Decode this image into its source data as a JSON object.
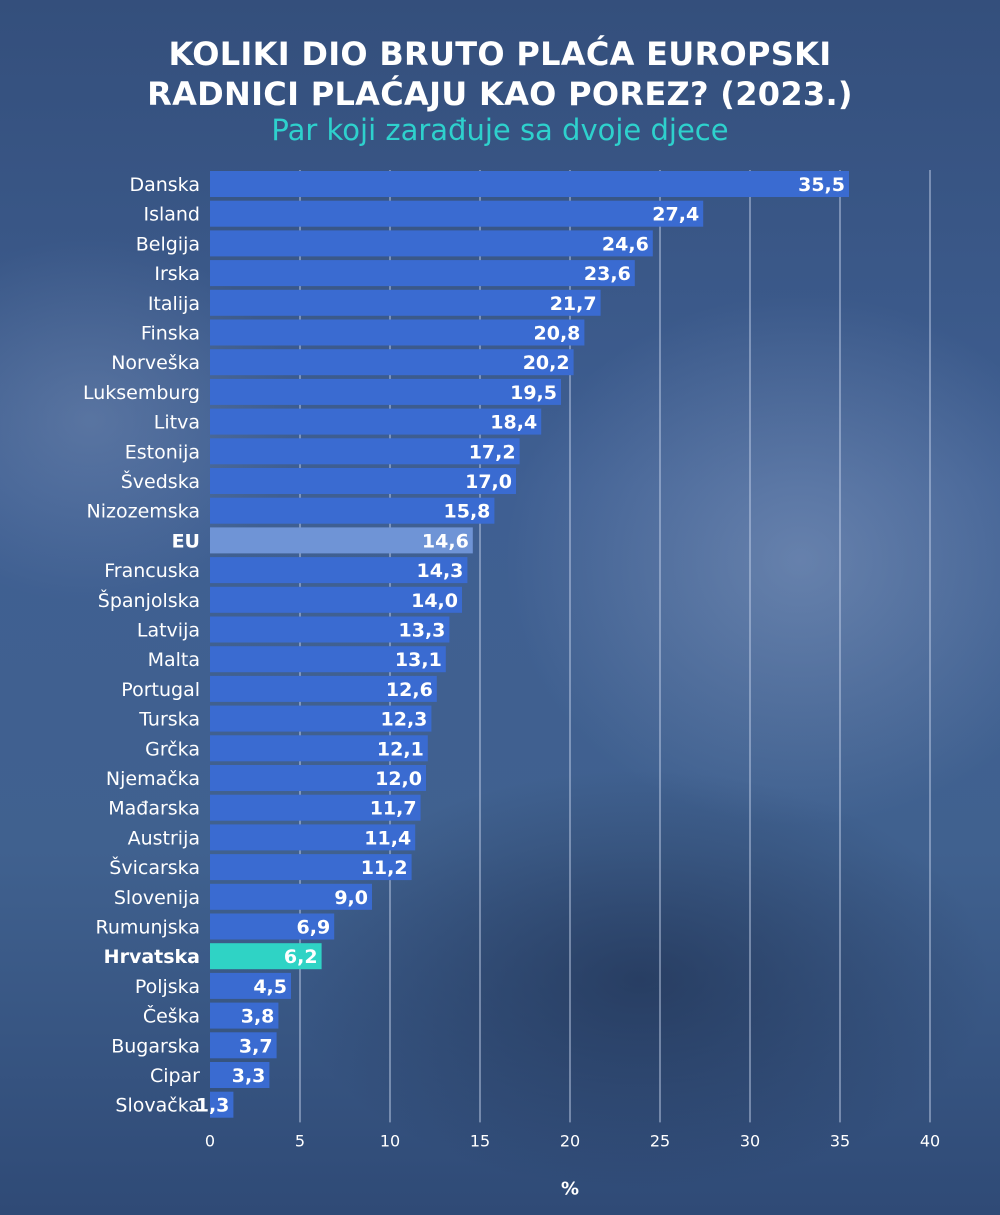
{
  "title_line1": "KOLIKI DIO BRUTO PLAĆA EUROPSKI",
  "title_line2": "RADNICI PLAĆAJU KAO POREZ? (2023.)",
  "subtitle": "Par koji zarađuje sa dvoje djece",
  "colors": {
    "bar": "#3a6bd1",
    "eu_bar": "#6f94d6",
    "highlight_bar": "#2fd3c5",
    "highlight_text": "#2ed1cd",
    "eu_value_text": "#0f1c3a",
    "grid": "#c9d6ee"
  },
  "chart_data": {
    "type": "bar",
    "orientation": "horizontal",
    "categories": [
      "Danska",
      "Island",
      "Belgija",
      "Irska",
      "Italija",
      "Finska",
      "Norveška",
      "Luksemburg",
      "Litva",
      "Estonija",
      "Švedska",
      "Nizozemska",
      "EU",
      "Francuska",
      "Španjolska",
      "Latvija",
      "Malta",
      "Portugal",
      "Turska",
      "Grčka",
      "Njemačka",
      "Mađarska",
      "Austrija",
      "Švicarska",
      "Slovenija",
      "Rumunjska",
      "Hrvatska",
      "Poljska",
      "Češka",
      "Bugarska",
      "Cipar",
      "Slovačka"
    ],
    "values": [
      35.5,
      27.4,
      24.6,
      23.6,
      21.7,
      20.8,
      20.2,
      19.5,
      18.4,
      17.2,
      17.0,
      15.8,
      14.6,
      14.3,
      14.0,
      13.3,
      13.1,
      12.6,
      12.3,
      12.1,
      12.0,
      11.7,
      11.4,
      11.2,
      9.0,
      6.9,
      6.2,
      4.5,
      3.8,
      3.7,
      3.3,
      1.3
    ],
    "value_labels": [
      "35,5",
      "27,4",
      "24,6",
      "23,6",
      "21,7",
      "20,8",
      "20,2",
      "19,5",
      "18,4",
      "17,2",
      "17,0",
      "15,8",
      "14,6",
      "14,3",
      "14,0",
      "13,3",
      "13,1",
      "12,6",
      "12,3",
      "12,1",
      "12,0",
      "11,7",
      "11,4",
      "11,2",
      "9,0",
      "6,9",
      "6,2",
      "4,5",
      "3,8",
      "3,7",
      "3,3",
      "1,3"
    ],
    "highlight": "Hrvatska",
    "average_category": "EU",
    "xlim": [
      0,
      40
    ],
    "xticks": [
      0,
      5,
      10,
      15,
      20,
      25,
      30,
      35,
      40
    ],
    "xlabel": "%",
    "grid": true
  }
}
